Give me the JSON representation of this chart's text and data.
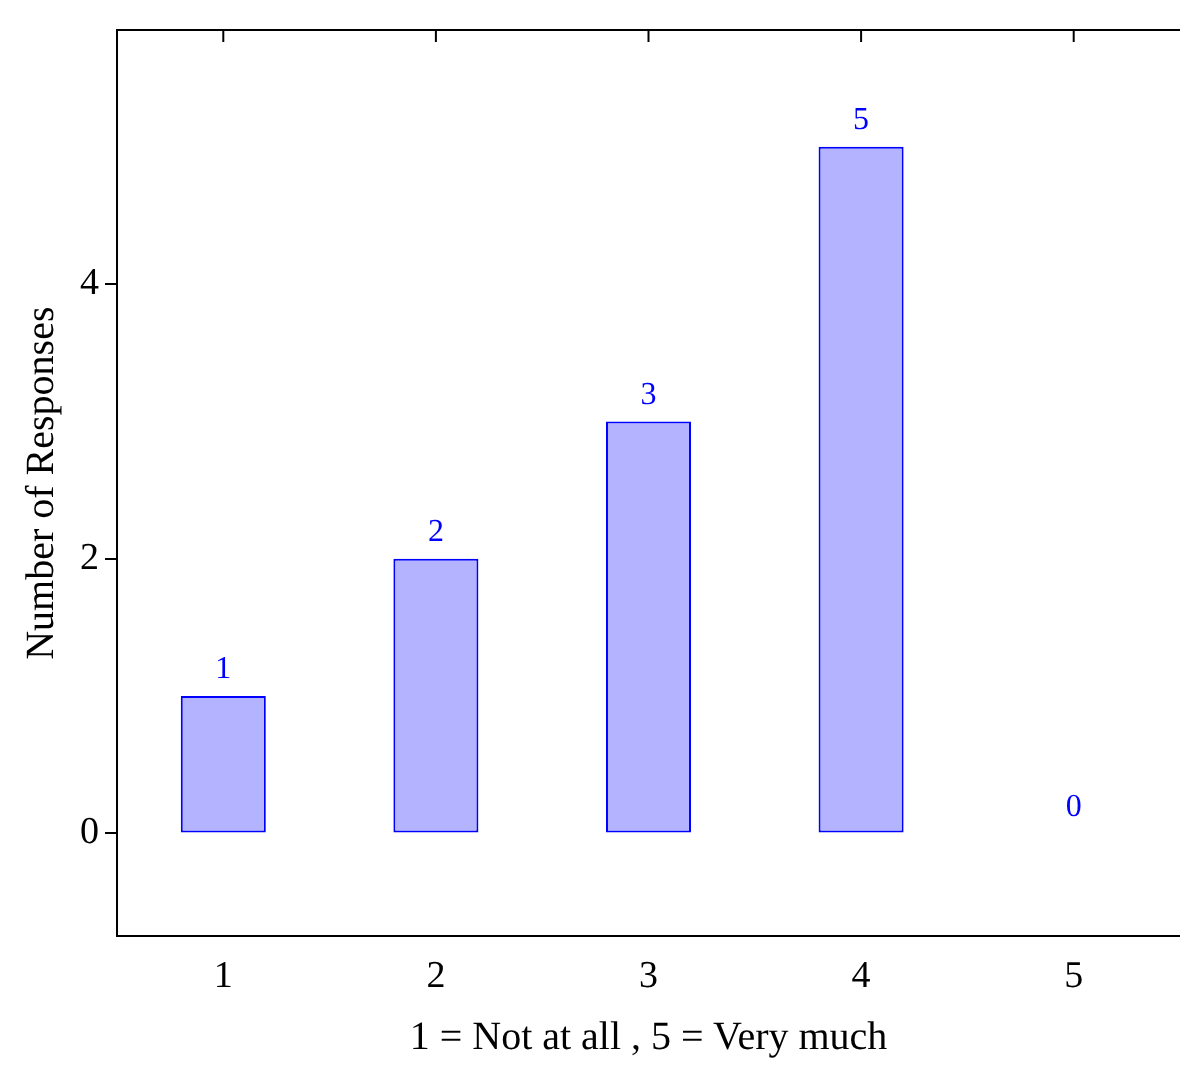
{
  "chart_data": {
    "type": "bar",
    "xlabel": "1 = Not at all , 5 = Very much",
    "ylabel": "Number of Responses",
    "categories": [
      "1",
      "2",
      "3",
      "4",
      "5"
    ],
    "values": [
      1,
      2,
      3,
      5,
      0
    ],
    "color": "#b3b3ff",
    "data_labels": true,
    "ylim": [
      -0.75,
      5.85
    ],
    "yticks": [
      0,
      2,
      4
    ],
    "grid": false,
    "legend": false
  }
}
